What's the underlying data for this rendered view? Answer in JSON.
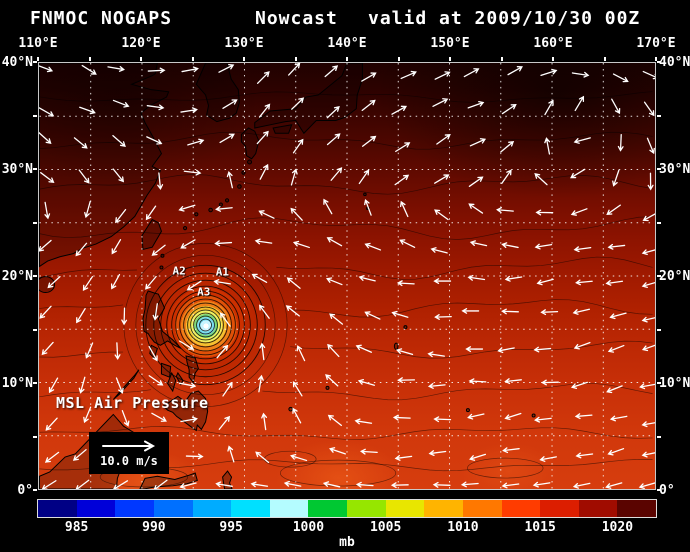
{
  "header": {
    "model": "FNMOC NOGAPS",
    "product": "Nowcast",
    "valid": "valid at 2009/10/30 00Z"
  },
  "map": {
    "field_label": "MSL Air Pressure",
    "lon_range": [
      110,
      170
    ],
    "lat_range": [
      0,
      40
    ],
    "grid_step_deg": 5,
    "lon_ticks": [
      {
        "lon": 110,
        "label": "110°E"
      },
      {
        "lon": 120,
        "label": "120°E"
      },
      {
        "lon": 130,
        "label": "130°E"
      },
      {
        "lon": 140,
        "label": "140°E"
      },
      {
        "lon": 150,
        "label": "150°E"
      },
      {
        "lon": 160,
        "label": "160°E"
      },
      {
        "lon": 170,
        "label": "170°E"
      }
    ],
    "lat_ticks": [
      {
        "lat": 40,
        "label": "40°N"
      },
      {
        "lat": 30,
        "label": "30°N"
      },
      {
        "lat": 20,
        "label": "20°N"
      },
      {
        "lat": 10,
        "label": "10°N"
      },
      {
        "lat": 0,
        "label": "0°"
      }
    ],
    "storm_markers": [
      {
        "label": "A2",
        "lon": 123.6,
        "lat": 20.6
      },
      {
        "label": "A1",
        "lon": 127.8,
        "lat": 20.5
      },
      {
        "label": "A3",
        "lon": 126.0,
        "lat": 18.6
      }
    ],
    "cyclone_center": {
      "lon": 126.2,
      "lat": 15.4
    },
    "wind_legend_label": "10.0 m/s"
  },
  "colorbar": {
    "unit": "mb",
    "ticks": [
      "985",
      "990",
      "995",
      "1000",
      "1005",
      "1010",
      "1015",
      "1020"
    ],
    "segment_colors": [
      "#000085",
      "#0000d9",
      "#0038ff",
      "#0070ff",
      "#00acff",
      "#00e0ff",
      "#b4fcff",
      "#00c832",
      "#96e600",
      "#e8e600",
      "#ffb400",
      "#ff7800",
      "#ff3c00",
      "#dc1e00",
      "#a00c00",
      "#5a0400"
    ]
  }
}
